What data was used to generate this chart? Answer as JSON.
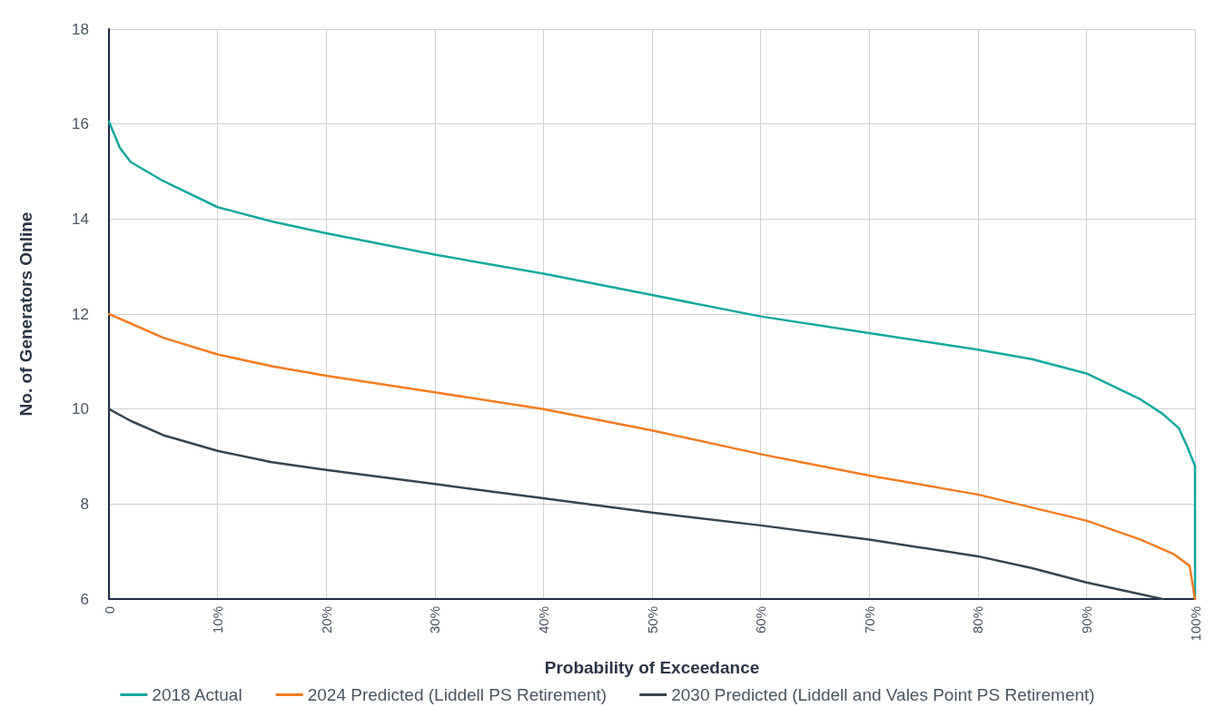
{
  "chart_data": {
    "type": "line",
    "xlabel": "Probability of Exceedance",
    "ylabel": "No. of Generators Online",
    "xlim": [
      0,
      100
    ],
    "ylim": [
      6,
      18
    ],
    "xticks": [
      0,
      {
        "value": 10,
        "label": "10%"
      },
      {
        "value": 20,
        "label": "20%"
      },
      {
        "value": 30,
        "label": "30%"
      },
      {
        "value": 40,
        "label": "40%"
      },
      {
        "value": 50,
        "label": "50%"
      },
      {
        "value": 60,
        "label": "60%"
      },
      {
        "value": 70,
        "label": "70%"
      },
      {
        "value": 80,
        "label": "80%"
      },
      {
        "value": 90,
        "label": "90%"
      },
      {
        "value": 100,
        "label": "100%"
      }
    ],
    "yticks": [
      6,
      8,
      10,
      12,
      14,
      16,
      18
    ],
    "grid": true,
    "legend": "bottom",
    "marker": "none",
    "line_style": "solid",
    "series": [
      {
        "name": "2018 Actual",
        "color": "#13a89e",
        "x": [
          0,
          1,
          2,
          5,
          10,
          15,
          20,
          30,
          40,
          50,
          60,
          70,
          80,
          85,
          90,
          95,
          97,
          98.5,
          99.3,
          100,
          100
        ],
        "values": [
          16.05,
          15.5,
          15.2,
          14.8,
          14.25,
          13.95,
          13.7,
          13.25,
          12.85,
          12.4,
          11.95,
          11.6,
          11.25,
          11.05,
          10.75,
          10.2,
          9.9,
          9.6,
          9.2,
          8.8,
          6
        ]
      },
      {
        "name": "2024 Predicted (Liddell PS Retirement)",
        "color": "#f47b20",
        "x": [
          0,
          5,
          10,
          15,
          20,
          30,
          40,
          50,
          60,
          70,
          80,
          90,
          95,
          98,
          99.5,
          100
        ],
        "values": [
          12,
          11.5,
          11.15,
          10.9,
          10.7,
          10.35,
          10,
          9.55,
          9.05,
          8.6,
          8.2,
          7.65,
          7.25,
          6.95,
          6.7,
          6
        ]
      },
      {
        "name": "2030 Predicted (Liddell and Vales Point PS Retirement)",
        "color": "#36454f",
        "x": [
          0,
          2,
          5,
          10,
          15,
          20,
          30,
          40,
          50,
          60,
          70,
          80,
          85,
          90,
          95,
          97
        ],
        "values": [
          10,
          9.75,
          9.45,
          9.12,
          8.88,
          8.72,
          8.42,
          8.12,
          7.82,
          7.55,
          7.25,
          6.9,
          6.65,
          6.35,
          6.1,
          6
        ]
      }
    ]
  }
}
